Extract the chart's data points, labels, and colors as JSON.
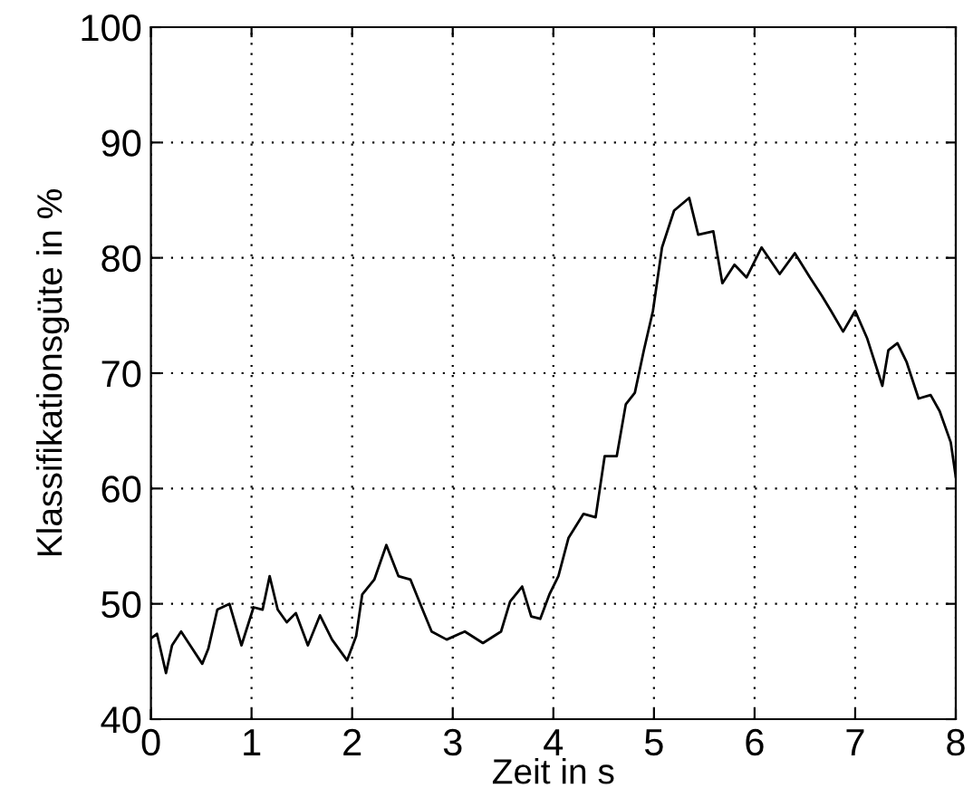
{
  "chart_data": {
    "type": "line",
    "xlabel": "Zeit in s",
    "ylabel": "Klassifikationsgüte in %",
    "xlim": [
      0,
      8
    ],
    "ylim": [
      40,
      100
    ],
    "xticks": [
      0,
      1,
      2,
      3,
      4,
      5,
      6,
      7,
      8
    ],
    "yticks": [
      40,
      50,
      60,
      70,
      80,
      90,
      100
    ],
    "grid": true,
    "line_style": "solid",
    "marker": "none",
    "series": [
      {
        "color": "#000000",
        "x": [
          0,
          0.06,
          0.15,
          0.21,
          0.3,
          0.39,
          0.51,
          0.57,
          0.66,
          0.78,
          0.9,
          1.02,
          1.11,
          1.18,
          1.26,
          1.35,
          1.44,
          1.56,
          1.68,
          1.8,
          1.95,
          2.04,
          2.1,
          2.22,
          2.34,
          2.46,
          2.58,
          2.7,
          2.79,
          2.94,
          3.12,
          3.3,
          3.48,
          3.57,
          3.69,
          3.78,
          3.87,
          3.96,
          4.05,
          4.15,
          4.3,
          4.42,
          4.51,
          4.63,
          4.72,
          4.81,
          4.9,
          4.99,
          5.08,
          5.2,
          5.35,
          5.44,
          5.59,
          5.68,
          5.8,
          5.92,
          6.07,
          6.25,
          6.4,
          6.55,
          6.67,
          6.76,
          6.88,
          7.0,
          7.12,
          7.27,
          7.33,
          7.42,
          7.51,
          7.63,
          7.75,
          7.84,
          7.95,
          8
        ],
        "values": [
          47,
          47.4,
          44,
          46.4,
          47.6,
          46.4,
          44.8,
          46.1,
          49.5,
          50,
          46.4,
          49.7,
          49.5,
          52.4,
          49.5,
          48.4,
          49.2,
          46.4,
          49,
          46.9,
          45.1,
          47.2,
          50.8,
          52.1,
          55.1,
          52.4,
          52.1,
          49.5,
          47.6,
          46.9,
          47.6,
          46.6,
          47.6,
          50.2,
          51.5,
          48.9,
          48.7,
          50.8,
          52.4,
          55.7,
          57.8,
          57.5,
          62.8,
          62.8,
          67.3,
          68.3,
          72,
          75.4,
          80.9,
          84.1,
          85.2,
          82,
          82.3,
          77.8,
          79.4,
          78.3,
          80.9,
          78.6,
          80.4,
          78.3,
          76.7,
          75.4,
          73.6,
          75.4,
          73,
          68.9,
          72,
          72.6,
          71,
          67.8,
          68.1,
          66.7,
          64,
          61
        ]
      }
    ]
  }
}
